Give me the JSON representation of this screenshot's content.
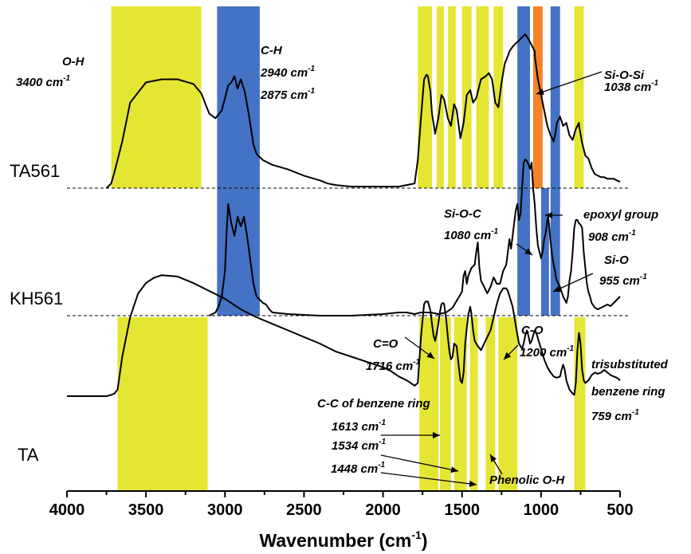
{
  "chart_data": {
    "type": "line",
    "title": "",
    "xlabel": "Wavenumber (cm-1)",
    "xlabel_main": "Wavenumber (cm",
    "xlabel_sup": "-1",
    "xlabel_end": ")",
    "ylabel": "",
    "xlim": [
      4000,
      500
    ],
    "x_reversed": true,
    "x_ticks": [
      4000,
      3500,
      3000,
      2500,
      2000,
      1500,
      1000,
      500
    ],
    "x_tick_labels": [
      "4000",
      "3500",
      "3000",
      "2500",
      "2000",
      "1500",
      "1000",
      "500"
    ],
    "y_axis_shown": false,
    "legend": "none",
    "grid": false,
    "colors": {
      "yellow": "#e5e534",
      "blue": "#4472c4",
      "orange": "#f5832a",
      "trace": "#000000"
    },
    "series": [
      {
        "name": "TA561",
        "x": [
          3750,
          3720,
          3700,
          3650,
          3600,
          3500,
          3400,
          3300,
          3200,
          3150,
          3100,
          3060,
          3020,
          3000,
          2980,
          2960,
          2940,
          2920,
          2900,
          2875,
          2850,
          2820,
          2800,
          2760,
          2700,
          2600,
          2500,
          2400,
          2350,
          2300,
          2200,
          2100,
          2000,
          1900,
          1850,
          1800,
          1780,
          1760,
          1740,
          1725,
          1716,
          1700,
          1690,
          1670,
          1650,
          1630,
          1613,
          1590,
          1570,
          1550,
          1534,
          1510,
          1490,
          1470,
          1448,
          1430,
          1410,
          1380,
          1350,
          1330,
          1310,
          1290,
          1270,
          1250,
          1230,
          1210,
          1200,
          1180,
          1160,
          1140,
          1120,
          1100,
          1080,
          1060,
          1040,
          1038,
          1020,
          1000,
          980,
          960,
          940,
          920,
          908,
          900,
          880,
          860,
          840,
          820,
          800,
          780,
          760,
          759,
          740,
          720,
          700,
          680,
          660,
          640,
          620,
          600,
          580,
          560,
          540,
          520,
          500
        ],
        "y": [
          0.0,
          0.03,
          0.1,
          0.3,
          0.55,
          0.68,
          0.7,
          0.7,
          0.67,
          0.61,
          0.48,
          0.45,
          0.5,
          0.58,
          0.66,
          0.68,
          0.72,
          0.64,
          0.7,
          0.62,
          0.48,
          0.28,
          0.22,
          0.18,
          0.15,
          0.12,
          0.08,
          0.05,
          0.03,
          0.02,
          0.01,
          0.01,
          0.01,
          0.01,
          0.02,
          0.03,
          0.18,
          0.45,
          0.7,
          0.73,
          0.72,
          0.62,
          0.48,
          0.35,
          0.45,
          0.6,
          0.57,
          0.45,
          0.4,
          0.54,
          0.5,
          0.32,
          0.42,
          0.6,
          0.63,
          0.55,
          0.58,
          0.7,
          0.72,
          0.74,
          0.7,
          0.55,
          0.52,
          0.68,
          0.8,
          0.85,
          0.88,
          0.91,
          0.93,
          0.95,
          0.97,
          0.99,
          0.96,
          0.92,
          0.88,
          0.84,
          0.7,
          0.6,
          0.5,
          0.4,
          0.34,
          0.3,
          0.36,
          0.42,
          0.46,
          0.4,
          0.42,
          0.34,
          0.31,
          0.38,
          0.42,
          0.4,
          0.29,
          0.21,
          0.19,
          0.13,
          0.09,
          0.08,
          0.07,
          0.07,
          0.06,
          0.06,
          0.06,
          0.05,
          0.04
        ]
      },
      {
        "name": "KH561",
        "x": [
          3100,
          3060,
          3040,
          3020,
          3000,
          2990,
          2980,
          2960,
          2940,
          2920,
          2900,
          2880,
          2860,
          2840,
          2820,
          2800,
          2760,
          2740,
          2720,
          2700,
          2600,
          2400,
          2200,
          2000,
          1900,
          1850,
          1800,
          1760,
          1700,
          1650,
          1600,
          1560,
          1530,
          1500,
          1490,
          1480,
          1470,
          1460,
          1440,
          1420,
          1410,
          1400,
          1390,
          1380,
          1370,
          1360,
          1340,
          1320,
          1300,
          1280,
          1260,
          1240,
          1220,
          1210,
          1200,
          1190,
          1180,
          1170,
          1160,
          1150,
          1140,
          1130,
          1120,
          1110,
          1100,
          1090,
          1080,
          1070,
          1060,
          1050,
          1040,
          1030,
          1020,
          1000,
          990,
          980,
          970,
          960,
          955,
          950,
          940,
          930,
          920,
          910,
          908,
          900,
          890,
          880,
          870,
          860,
          850,
          840,
          830,
          820,
          810,
          800,
          790,
          780,
          770,
          760,
          750,
          740,
          730,
          720,
          710,
          700,
          690,
          680,
          660,
          640,
          620,
          600,
          580,
          560,
          540,
          520,
          500
        ],
        "y": [
          0.0,
          0.02,
          0.06,
          0.12,
          0.28,
          0.52,
          0.7,
          0.58,
          0.5,
          0.62,
          0.56,
          0.62,
          0.5,
          0.35,
          0.2,
          0.12,
          0.08,
          0.07,
          0.04,
          0.02,
          0.01,
          0.0,
          0.0,
          0.01,
          0.02,
          0.02,
          0.01,
          0.02,
          0.02,
          0.01,
          0.02,
          0.05,
          0.1,
          0.15,
          0.25,
          0.28,
          0.2,
          0.25,
          0.3,
          0.32,
          0.4,
          0.46,
          0.3,
          0.22,
          0.2,
          0.18,
          0.14,
          0.18,
          0.24,
          0.2,
          0.2,
          0.28,
          0.32,
          0.4,
          0.48,
          0.42,
          0.5,
          0.58,
          0.66,
          0.7,
          0.6,
          0.64,
          0.8,
          0.96,
          0.98,
          0.97,
          0.95,
          0.92,
          0.96,
          0.8,
          0.7,
          0.55,
          0.44,
          0.36,
          0.4,
          0.48,
          0.52,
          0.6,
          0.62,
          0.58,
          0.46,
          0.38,
          0.32,
          0.27,
          0.25,
          0.22,
          0.2,
          0.18,
          0.15,
          0.12,
          0.1,
          0.08,
          0.12,
          0.22,
          0.28,
          0.4,
          0.55,
          0.6,
          0.6,
          0.58,
          0.57,
          0.55,
          0.4,
          0.3,
          0.2,
          0.15,
          0.12,
          0.08,
          0.05,
          0.04,
          0.05,
          0.06,
          0.07,
          0.06,
          0.08,
          0.1,
          0.12
        ]
      },
      {
        "name": "TA",
        "x": [
          4000,
          3800,
          3750,
          3720,
          3700,
          3680,
          3650,
          3600,
          3550,
          3500,
          3450,
          3400,
          3300,
          3200,
          3100,
          3000,
          2900,
          2800,
          2700,
          2600,
          2500,
          2400,
          2300,
          2200,
          2100,
          2000,
          1950,
          1900,
          1850,
          1800,
          1780,
          1760,
          1740,
          1730,
          1716,
          1700,
          1690,
          1680,
          1670,
          1660,
          1650,
          1640,
          1630,
          1620,
          1613,
          1600,
          1590,
          1580,
          1570,
          1560,
          1550,
          1534,
          1520,
          1510,
          1500,
          1490,
          1480,
          1470,
          1460,
          1448,
          1440,
          1430,
          1420,
          1410,
          1400,
          1380,
          1360,
          1340,
          1320,
          1300,
          1280,
          1260,
          1240,
          1230,
          1220,
          1210,
          1200,
          1180,
          1160,
          1140,
          1120,
          1110,
          1100,
          1090,
          1080,
          1070,
          1060,
          1050,
          1040,
          1030,
          1020,
          1000,
          980,
          960,
          940,
          920,
          900,
          880,
          870,
          860,
          850,
          840,
          820,
          800,
          790,
          780,
          770,
          760,
          759,
          750,
          740,
          730,
          720,
          700,
          680,
          660,
          640,
          620,
          600,
          580,
          560,
          540,
          520,
          500
        ],
        "y": [
          0.0,
          0.0,
          0.0,
          0.01,
          0.02,
          0.05,
          0.3,
          0.6,
          0.78,
          0.86,
          0.9,
          0.92,
          0.91,
          0.86,
          0.8,
          0.74,
          0.66,
          0.6,
          0.55,
          0.5,
          0.45,
          0.4,
          0.34,
          0.3,
          0.26,
          0.22,
          0.19,
          0.15,
          0.12,
          0.08,
          0.1,
          0.45,
          0.7,
          0.72,
          0.72,
          0.65,
          0.55,
          0.46,
          0.42,
          0.48,
          0.55,
          0.64,
          0.7,
          0.71,
          0.7,
          0.58,
          0.45,
          0.34,
          0.28,
          0.3,
          0.4,
          0.38,
          0.22,
          0.12,
          0.1,
          0.18,
          0.4,
          0.52,
          0.62,
          0.68,
          0.62,
          0.5,
          0.42,
          0.4,
          0.38,
          0.35,
          0.4,
          0.45,
          0.5,
          0.6,
          0.7,
          0.78,
          0.82,
          0.82,
          0.82,
          0.8,
          0.76,
          0.68,
          0.54,
          0.4,
          0.36,
          0.4,
          0.46,
          0.5,
          0.46,
          0.4,
          0.42,
          0.46,
          0.5,
          0.48,
          0.44,
          0.36,
          0.28,
          0.22,
          0.18,
          0.15,
          0.14,
          0.15,
          0.2,
          0.24,
          0.2,
          0.12,
          0.05,
          0.02,
          0.01,
          0.1,
          0.35,
          0.48,
          0.48,
          0.4,
          0.2,
          0.12,
          0.1,
          0.12,
          0.16,
          0.18,
          0.17,
          0.18,
          0.2,
          0.18,
          0.16,
          0.15,
          0.14,
          0.12
        ]
      }
    ],
    "bands": [
      {
        "from": 3720,
        "to": 3150,
        "color": "yellow",
        "panel": "top"
      },
      {
        "from": 3050,
        "to": 2780,
        "color": "blue",
        "panel": "top-mid"
      },
      {
        "from": 1780,
        "to": 1690,
        "color": "yellow",
        "panel": "top"
      },
      {
        "from": 1660,
        "to": 1615,
        "color": "yellow",
        "panel": "top"
      },
      {
        "from": 1590,
        "to": 1540,
        "color": "yellow",
        "panel": "top"
      },
      {
        "from": 1500,
        "to": 1440,
        "color": "yellow",
        "panel": "top"
      },
      {
        "from": 1410,
        "to": 1330,
        "color": "yellow",
        "panel": "top"
      },
      {
        "from": 1300,
        "to": 1240,
        "color": "yellow",
        "panel": "top"
      },
      {
        "from": 1150,
        "to": 1070,
        "color": "blue",
        "panel": "top-mid"
      },
      {
        "from": 1050,
        "to": 990,
        "color": "orange",
        "panel": "top"
      },
      {
        "from": 1000,
        "to": 950,
        "color": "blue",
        "panel": "mid"
      },
      {
        "from": 940,
        "to": 880,
        "color": "blue",
        "panel": "top-mid"
      },
      {
        "from": 790,
        "to": 730,
        "color": "yellow",
        "panel": "top"
      },
      {
        "from": 3680,
        "to": 3110,
        "color": "yellow",
        "panel": "bottom"
      },
      {
        "from": 1770,
        "to": 1650,
        "color": "yellow",
        "panel": "bottom"
      },
      {
        "from": 1640,
        "to": 1570,
        "color": "yellow",
        "panel": "bottom"
      },
      {
        "from": 1550,
        "to": 1470,
        "color": "yellow",
        "panel": "bottom"
      },
      {
        "from": 1450,
        "to": 1400,
        "color": "yellow",
        "panel": "bottom"
      },
      {
        "from": 1350,
        "to": 1290,
        "color": "yellow",
        "panel": "bottom"
      },
      {
        "from": 1270,
        "to": 1150,
        "color": "yellow",
        "panel": "bottom"
      },
      {
        "from": 790,
        "to": 720,
        "color": "yellow",
        "panel": "bottom"
      }
    ],
    "sample_labels": [
      "TA561",
      "KH561",
      "TA"
    ],
    "annotations": [
      {
        "text": "O-H",
        "sup": ""
      },
      {
        "text": "3400 cm",
        "sup": "-1"
      },
      {
        "text": "C-H",
        "sup": ""
      },
      {
        "text": "2940 cm",
        "sup": "-1"
      },
      {
        "text": "2875 cm",
        "sup": "-1"
      },
      {
        "text": "Si-O-Si",
        "sup": ""
      },
      {
        "text": "1038 cm",
        "sup": "-1"
      },
      {
        "text": "Si-O-C",
        "sup": ""
      },
      {
        "text": "1080 cm",
        "sup": "-1"
      },
      {
        "text": "epoxyl group",
        "sup": ""
      },
      {
        "text": "908 cm",
        "sup": "-1"
      },
      {
        "text": "Si-O",
        "sup": ""
      },
      {
        "text": "955 cm",
        "sup": "-1"
      },
      {
        "text": "C=O",
        "sup": ""
      },
      {
        "text": "1716 cm",
        "sup": "-1"
      },
      {
        "text": "C-O",
        "sup": ""
      },
      {
        "text": "1200 cm",
        "sup": "-1"
      },
      {
        "text": "C-C of benzene ring",
        "sup": ""
      },
      {
        "text": "1613 cm",
        "sup": "-1"
      },
      {
        "text": "1534 cm",
        "sup": "-1"
      },
      {
        "text": "1448 cm",
        "sup": "-1"
      },
      {
        "text": "Phenolic O-H",
        "sup": ""
      },
      {
        "text": "trisubstituted",
        "sup": ""
      },
      {
        "text": "benzene ring",
        "sup": ""
      },
      {
        "text": "759 cm",
        "sup": "-1"
      }
    ]
  }
}
